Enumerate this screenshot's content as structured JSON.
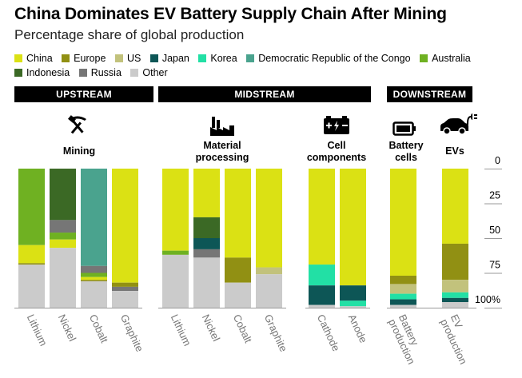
{
  "chart_data": {
    "type": "bar",
    "title": "China Dominates EV Battery Supply Chain After Mining",
    "subtitle": "Percentage share of global production",
    "legend": [
      {
        "name": "China",
        "color": "#dbe114"
      },
      {
        "name": "Europe",
        "color": "#919013"
      },
      {
        "name": "US",
        "color": "#c2c27c"
      },
      {
        "name": "Japan",
        "color": "#0d5656"
      },
      {
        "name": "Korea",
        "color": "#22e0a5"
      },
      {
        "name": "Democratic Republic of the Congo",
        "color": "#4aa38e"
      },
      {
        "name": "Australia",
        "color": "#6fb122"
      },
      {
        "name": "Indonesia",
        "color": "#3b6925"
      },
      {
        "name": "Russia",
        "color": "#767676"
      },
      {
        "name": "Other",
        "color": "#cbcbcb"
      }
    ],
    "stages": [
      "UPSTREAM",
      "MIDSTREAM",
      "DOWNSTREAM"
    ],
    "group_labels": [
      "Mining",
      "Material processing",
      "Cell components",
      "Battery cells",
      "EVs"
    ],
    "y_axis": {
      "ylim": [
        0,
        100
      ],
      "ticks": [
        "0",
        "25",
        "50",
        "75",
        "100%"
      ]
    },
    "categories": [
      "Lithium",
      "Nickel",
      "Cobalt",
      "Graphite",
      "Lithium",
      "Nickel",
      "Cobalt",
      "Graphite",
      "Cathode",
      "Anode",
      "Battery production",
      "EV production"
    ],
    "bars": [
      {
        "group": "Mining",
        "label": "Lithium",
        "segments": [
          [
            "Australia",
            55
          ],
          [
            "China",
            13
          ],
          [
            "Europe",
            1
          ],
          [
            "Other",
            31
          ]
        ]
      },
      {
        "group": "Mining",
        "label": "Nickel",
        "segments": [
          [
            "Indonesia",
            37
          ],
          [
            "Russia",
            9
          ],
          [
            "Australia",
            5
          ],
          [
            "China",
            6
          ],
          [
            "Other",
            43
          ]
        ]
      },
      {
        "group": "Mining",
        "label": "Cobalt",
        "segments": [
          [
            "Democratic Republic of the Congo",
            70
          ],
          [
            "Russia",
            5
          ],
          [
            "Australia",
            3
          ],
          [
            "China",
            2
          ],
          [
            "Europe",
            1
          ],
          [
            "Other",
            19
          ]
        ]
      },
      {
        "group": "Mining",
        "label": "Graphite",
        "segments": [
          [
            "China",
            82
          ],
          [
            "Europe",
            3
          ],
          [
            "Russia",
            3
          ],
          [
            "Other",
            12
          ]
        ]
      },
      {
        "group": "Material processing",
        "label": "Lithium",
        "segments": [
          [
            "China",
            59
          ],
          [
            "Australia",
            3
          ],
          [
            "Other",
            38
          ]
        ]
      },
      {
        "group": "Material processing",
        "label": "Nickel",
        "segments": [
          [
            "China",
            35
          ],
          [
            "Indonesia",
            15
          ],
          [
            "Japan",
            8
          ],
          [
            "Russia",
            6
          ],
          [
            "Other",
            36
          ]
        ]
      },
      {
        "group": "Material processing",
        "label": "Cobalt",
        "segments": [
          [
            "China",
            64
          ],
          [
            "Europe",
            18
          ],
          [
            "Other",
            18
          ]
        ]
      },
      {
        "group": "Material processing",
        "label": "Graphite",
        "segments": [
          [
            "China",
            71
          ],
          [
            "US",
            5
          ],
          [
            "Other",
            24
          ]
        ]
      },
      {
        "group": "Cell components",
        "label": "Cathode",
        "segments": [
          [
            "China",
            69
          ],
          [
            "Korea",
            15
          ],
          [
            "Japan",
            14
          ],
          [
            "Other",
            2
          ]
        ]
      },
      {
        "group": "Cell components",
        "label": "Anode",
        "segments": [
          [
            "China",
            84
          ],
          [
            "Japan",
            11
          ],
          [
            "Korea",
            4
          ],
          [
            "Other",
            1
          ]
        ]
      },
      {
        "group": "Battery cells",
        "label": "Battery production",
        "segments": [
          [
            "China",
            77
          ],
          [
            "Europe",
            6
          ],
          [
            "US",
            7
          ],
          [
            "Korea",
            4
          ],
          [
            "Japan",
            4
          ],
          [
            "Other",
            2
          ]
        ]
      },
      {
        "group": "EVs",
        "label": "EV production",
        "segments": [
          [
            "China",
            54
          ],
          [
            "Europe",
            26
          ],
          [
            "US",
            9
          ],
          [
            "Korea",
            4
          ],
          [
            "Japan",
            3
          ],
          [
            "Other",
            4
          ]
        ]
      }
    ]
  }
}
